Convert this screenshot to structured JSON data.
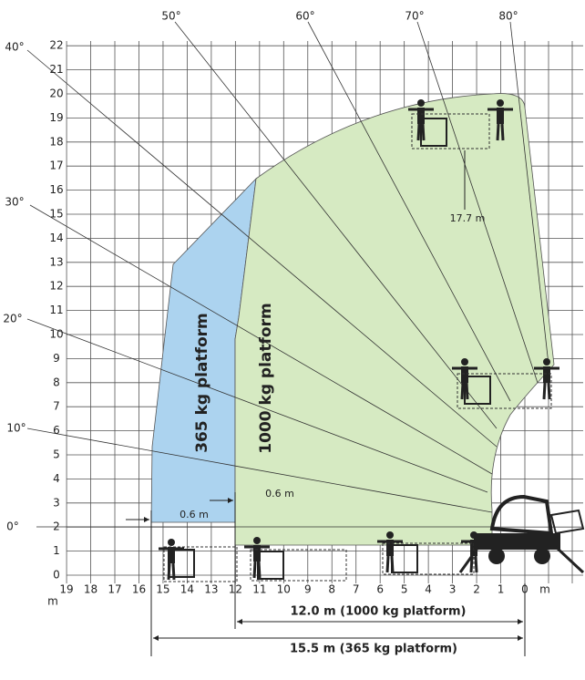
{
  "y_axis": {
    "unit": "m",
    "ticks": [
      0,
      1,
      2,
      3,
      4,
      5,
      6,
      7,
      8,
      9,
      10,
      11,
      12,
      13,
      14,
      15,
      16,
      17,
      18,
      19,
      20,
      21,
      22
    ]
  },
  "x_axis": {
    "unit": "m",
    "ticks": [
      19,
      18,
      17,
      16,
      15,
      14,
      13,
      12,
      11,
      10,
      9,
      8,
      7,
      6,
      5,
      4,
      3,
      2,
      1,
      0
    ]
  },
  "angles": {
    "left": [
      "0°",
      "10°",
      "20°",
      "30°",
      "40°"
    ],
    "top": [
      "50°",
      "60°",
      "70°",
      "80°"
    ]
  },
  "zones": [
    "365 kg platform",
    "1000 kg platform"
  ],
  "dimensions": {
    "offset_left": "0.6 m",
    "offset_right": "0.6 m",
    "height": "17.7 m",
    "reach_1000": "12.0 m (1000 kg platform)",
    "reach_365": "15.5 m (365 kg platform)"
  }
}
